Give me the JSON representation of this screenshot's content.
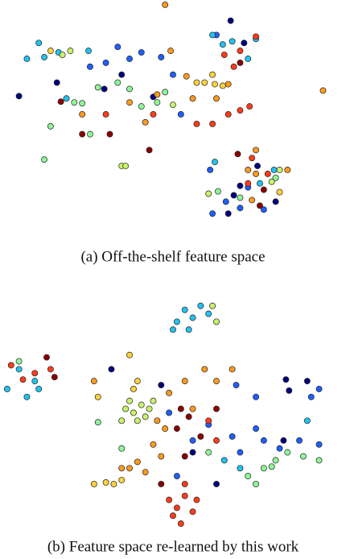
{
  "chart_data": [
    {
      "type": "scatter",
      "title": "(a)  Off-the-shelf feature space",
      "xlim": [
        0,
        430
      ],
      "ylim": [
        275,
        0
      ],
      "series": [
        {
          "color": "#00007f",
          "x": [
            20,
            68,
            150,
            128,
            190,
            292,
            288,
            305,
            322,
            285,
            300,
            345
          ],
          "values": [
            117,
            100,
            90,
            108,
            118,
            242,
            22,
            50,
            205,
            265,
            230,
            250
          ]
        },
        {
          "color": "#1f5fff",
          "x": [
            130,
            145,
            160,
            110,
            175,
            200,
            215,
            225,
            262,
            270,
            300,
            330,
            265,
            282,
            310
          ],
          "values": [
            75,
            55,
            70,
            80,
            62,
            68,
            90,
            140,
            210,
            40,
            258,
            260,
            265,
            250,
            232
          ]
        },
        {
          "color": "#22c3f0",
          "x": [
            45,
            52,
            70,
            30,
            265,
            278,
            290,
            310,
            320,
            343,
            268,
            325,
            108,
            80
          ],
          "values": [
            50,
            68,
            62,
            70,
            40,
            52,
            48,
            70,
            45,
            210,
            200,
            227,
            60,
            120
          ]
        },
        {
          "color": "#8ef59a",
          "x": [
            100,
            120,
            90,
            160,
            175,
            195,
            205,
            145,
            272,
            345,
            300,
            60,
            52,
            110
          ],
          "values": [
            126,
            106,
            125,
            108,
            130,
            125,
            112,
            100,
            237,
            220,
            245,
            155,
            197,
            165
          ]
        },
        {
          "color": "#c8f26a",
          "x": [
            75,
            85,
            350,
            340,
            150,
            155,
            260,
            215
          ],
          "values": [
            65,
            60,
            210,
            225,
            205,
            205,
            240,
            128
          ]
        },
        {
          "color": "#ffd23c",
          "x": [
            245,
            255,
            268,
            278,
            265,
            60,
            350
          ],
          "values": [
            100,
            100,
            102,
            104,
            90,
            60,
            238
          ]
        },
        {
          "color": "#ff9a1f",
          "x": [
            205,
            212,
            232,
            240,
            270,
            285,
            160,
            180,
            195,
            100,
            310,
            360,
            405,
            315,
            320,
            320
          ],
          "values": [
            2,
            60,
            92,
            120,
            120,
            102,
            125,
            150,
            115,
            140,
            210,
            210,
            110,
            248,
            215,
            185
          ]
        },
        {
          "color": "#ff3c1c",
          "x": [
            280,
            292,
            300,
            320,
            245,
            265,
            285,
            300,
            312,
            315,
            310,
            335,
            190,
            130
          ],
          "values": [
            65,
            80,
            60,
            42,
            152,
            152,
            140,
            135,
            130,
            195,
            227,
            215,
            140,
            140
          ]
        },
        {
          "color": "#8b0000",
          "x": [
            73,
            100,
            135,
            185,
            297,
            330,
            300,
            325
          ],
          "values": [
            124,
            165,
            165,
            185,
            190,
            235,
            75,
            255
          ]
        }
      ]
    },
    {
      "type": "scatter",
      "title": "(b)  Feature space re-learned by this work",
      "xlim": [
        0,
        430
      ],
      "ylim": [
        655,
        360
      ],
      "series": [
        {
          "color": "#00007f",
          "x": [
            137,
            358,
            362,
            385,
            200,
            355,
            240,
            270
          ],
          "values": [
            455,
            468,
            482,
            470,
            475,
            545,
            560,
            600
          ]
        },
        {
          "color": "#1f5fff",
          "x": [
            295,
            320,
            390,
            400,
            260,
            290,
            320,
            350,
            375,
            300,
            330,
            400,
            210,
            240,
            220
          ],
          "values": [
            475,
            490,
            490,
            480,
            525,
            540,
            530,
            555,
            545,
            560,
            545,
            550,
            510,
            545,
            590
          ]
        },
        {
          "color": "#22c3f0",
          "x": [
            20,
            40,
            45,
            230,
            240,
            220,
            250,
            260,
            215,
            235,
            5,
            30,
            280,
            300,
            385
          ],
          "values": [
            455,
            470,
            480,
            380,
            390,
            395,
            375,
            385,
            405,
            405,
            480,
            490,
            570,
            580,
            520
          ]
        },
        {
          "color": "#8ef59a",
          "x": [
            20,
            360,
            380,
            345,
            330,
            310,
            320,
            340,
            400,
            260,
            150,
            120
          ],
          "values": [
            445,
            560,
            565,
            570,
            580,
            590,
            600,
            578,
            570,
            560,
            555,
            522
          ]
        },
        {
          "color": "#c8f26a",
          "x": [
            155,
            165,
            175,
            170,
            180,
            160,
            185,
            150,
            190,
            265,
            270
          ],
          "values": [
            505,
            510,
            500,
            520,
            515,
            495,
            505,
            520,
            495,
            375,
            395
          ]
        },
        {
          "color": "#ffd23c",
          "x": [
            115,
            130,
            140,
            150,
            165,
            170,
            120,
            160
          ],
          "values": [
            600,
            598,
            600,
            595,
            480,
            470,
            490,
            437
          ]
        },
        {
          "color": "#ff9a1f",
          "x": [
            160,
            170,
            180,
            195,
            205,
            190,
            210,
            230,
            255,
            240,
            270,
            290,
            115,
            150,
            200
          ],
          "values": [
            580,
            572,
            585,
            520,
            530,
            550,
            485,
            470,
            455,
            505,
            470,
            455,
            470,
            580,
            565
          ]
        },
        {
          "color": "#ff3c1c",
          "x": [
            210,
            220,
            230,
            240,
            215,
            230,
            245,
            225,
            260,
            270,
            40,
            60,
            25,
            10
          ],
          "values": [
            620,
            630,
            615,
            635,
            640,
            600,
            620,
            650,
            520,
            545,
            460,
            455,
            468,
            450
          ]
        },
        {
          "color": "#8b0000",
          "x": [
            235,
            225,
            220,
            250,
            270,
            200,
            230,
            55,
            65
          ],
          "values": [
            515,
            505,
            530,
            540,
            505,
            600,
            565,
            440,
            465
          ]
        }
      ]
    }
  ]
}
